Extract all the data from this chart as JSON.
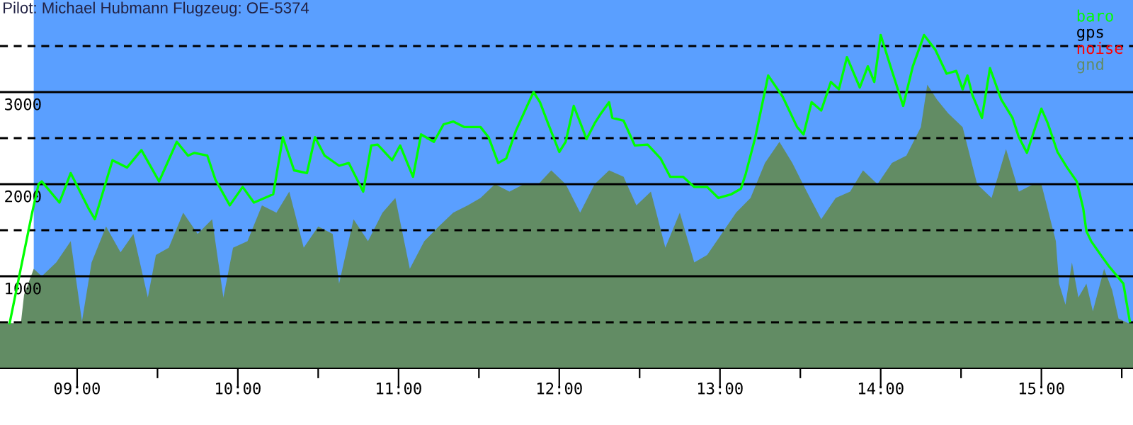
{
  "chart_data": {
    "type": "line",
    "title": "Pilot: Michael Hubmann Flugzeug: OE-5374",
    "xlim": [
      8.52,
      15.57
    ],
    "ylim": [
      0,
      4000
    ],
    "xticks": [
      {
        "value": 9,
        "label": "09:00"
      },
      {
        "value": 9.5,
        "label": null
      },
      {
        "value": 10,
        "label": "10:00"
      },
      {
        "value": 10.5,
        "label": null
      },
      {
        "value": 11,
        "label": "11:00"
      },
      {
        "value": 11.5,
        "label": null
      },
      {
        "value": 12,
        "label": "12:00"
      },
      {
        "value": 12.5,
        "label": null
      },
      {
        "value": 13,
        "label": "13:00"
      },
      {
        "value": 13.5,
        "label": null
      },
      {
        "value": 14,
        "label": "14:00"
      },
      {
        "value": 14.5,
        "label": null
      },
      {
        "value": 15,
        "label": "15:00"
      },
      {
        "value": 15.5,
        "label": null
      }
    ],
    "yticks": [
      {
        "value": 500,
        "label": null
      },
      1000,
      {
        "value": 1500,
        "label": null
      },
      2000,
      {
        "value": 2500,
        "label": null
      },
      3000,
      {
        "value": 3500,
        "label": null
      }
    ],
    "grid": "y",
    "legend": "top right",
    "bands": [
      {
        "axis": "x",
        "from": 8.52,
        "to": 8.73,
        "color": "#ffffff"
      }
    ],
    "series": [
      {
        "name": "baro",
        "color": "#00ff00",
        "x": [
          8.58,
          8.72,
          8.76,
          8.78,
          8.89,
          8.96,
          9.07,
          9.11,
          9.22,
          9.31,
          9.4,
          9.51,
          9.62,
          9.69,
          9.73,
          9.81,
          9.86,
          9.95,
          10.03,
          10.1,
          10.22,
          10.28,
          10.35,
          10.43,
          10.48,
          10.54,
          10.63,
          10.69,
          10.78,
          10.83,
          10.87,
          10.96,
          11.01,
          11.09,
          11.14,
          11.22,
          11.28,
          11.34,
          11.41,
          11.51,
          11.56,
          11.62,
          11.67,
          11.73,
          11.8,
          11.84,
          11.88,
          11.93,
          12.0,
          12.04,
          12.09,
          12.17,
          12.22,
          12.26,
          12.31,
          12.33,
          12.4,
          12.47,
          12.55,
          12.63,
          12.69,
          12.77,
          12.84,
          12.92,
          12.99,
          13.07,
          13.13,
          13.16,
          13.22,
          13.3,
          13.39,
          13.48,
          13.52,
          13.57,
          13.63,
          13.69,
          13.74,
          13.79,
          13.87,
          13.92,
          13.96,
          14.0,
          14.07,
          14.14,
          14.2,
          14.27,
          14.34,
          14.41,
          14.47,
          14.51,
          14.54,
          14.57,
          14.63,
          14.68,
          14.75,
          14.82,
          14.86,
          14.91,
          15.0,
          15.04,
          15.1,
          15.16,
          15.22,
          15.26,
          15.28,
          15.31,
          15.37,
          15.42,
          15.51,
          15.55
        ],
        "values": [
          490,
          1690,
          2000,
          2030,
          1800,
          2120,
          1740,
          1620,
          2260,
          2180,
          2370,
          2030,
          2460,
          2310,
          2340,
          2310,
          2050,
          1770,
          1970,
          1800,
          1890,
          2510,
          2150,
          2120,
          2510,
          2310,
          2200,
          2230,
          1920,
          2420,
          2430,
          2260,
          2420,
          2080,
          2540,
          2460,
          2650,
          2680,
          2620,
          2620,
          2510,
          2230,
          2280,
          2580,
          2850,
          3000,
          2890,
          2660,
          2350,
          2460,
          2850,
          2490,
          2660,
          2770,
          2890,
          2720,
          2690,
          2420,
          2430,
          2280,
          2080,
          2080,
          1970,
          1970,
          1850,
          1890,
          1950,
          2110,
          2510,
          3180,
          2950,
          2620,
          2540,
          2890,
          2800,
          3110,
          3030,
          3380,
          3050,
          3280,
          3110,
          3620,
          3230,
          2850,
          3280,
          3620,
          3460,
          3200,
          3230,
          3030,
          3180,
          2970,
          2720,
          3260,
          2920,
          2720,
          2510,
          2340,
          2820,
          2660,
          2350,
          2180,
          2030,
          1740,
          1490,
          1380,
          1230,
          1110,
          920,
          510
        ]
      },
      {
        "name": "gps",
        "color": "#000000"
      },
      {
        "name": "noise",
        "color": "#ff0000"
      },
      {
        "name": "gnd",
        "type": "area",
        "color": "#628c64",
        "x": [
          8.52,
          8.65,
          8.67,
          8.73,
          8.78,
          8.87,
          8.96,
          9.03,
          9.09,
          9.18,
          9.27,
          9.35,
          9.44,
          9.49,
          9.57,
          9.66,
          9.75,
          9.84,
          9.91,
          9.97,
          10.06,
          10.15,
          10.24,
          10.32,
          10.41,
          10.5,
          10.59,
          10.63,
          10.72,
          10.81,
          10.9,
          10.98,
          11.07,
          11.16,
          11.25,
          11.34,
          11.43,
          11.51,
          11.6,
          11.69,
          11.78,
          11.87,
          11.95,
          12.04,
          12.13,
          12.22,
          12.31,
          12.4,
          12.48,
          12.57,
          12.66,
          12.75,
          12.84,
          12.92,
          13.01,
          13.1,
          13.19,
          13.28,
          13.37,
          13.45,
          13.54,
          13.63,
          13.72,
          13.81,
          13.89,
          13.98,
          14.07,
          14.16,
          14.25,
          14.29,
          14.35,
          14.42,
          14.51,
          14.6,
          14.69,
          14.78,
          14.86,
          14.95,
          15.0,
          15.09,
          15.11,
          15.15,
          15.19,
          15.23,
          15.28,
          15.32,
          15.39,
          15.44,
          15.48,
          15.54,
          15.57
        ],
        "values": [
          490,
          490,
          800,
          1080,
          1000,
          1150,
          1380,
          510,
          1150,
          1540,
          1260,
          1460,
          770,
          1230,
          1310,
          1690,
          1460,
          1620,
          770,
          1310,
          1380,
          1770,
          1690,
          1920,
          1310,
          1540,
          1460,
          920,
          1620,
          1380,
          1690,
          1850,
          1080,
          1380,
          1540,
          1690,
          1770,
          1850,
          2000,
          1920,
          2000,
          2000,
          2150,
          2000,
          1690,
          2000,
          2150,
          2080,
          1770,
          1920,
          1310,
          1690,
          1150,
          1230,
          1460,
          1690,
          1850,
          2230,
          2460,
          2230,
          1920,
          1620,
          1850,
          1920,
          2150,
          2000,
          2230,
          2310,
          2620,
          3080,
          2920,
          2770,
          2620,
          2000,
          1850,
          2380,
          1920,
          2000,
          2000,
          1380,
          920,
          690,
          1150,
          770,
          920,
          620,
          1080,
          850,
          540,
          490,
          490
        ]
      }
    ]
  }
}
